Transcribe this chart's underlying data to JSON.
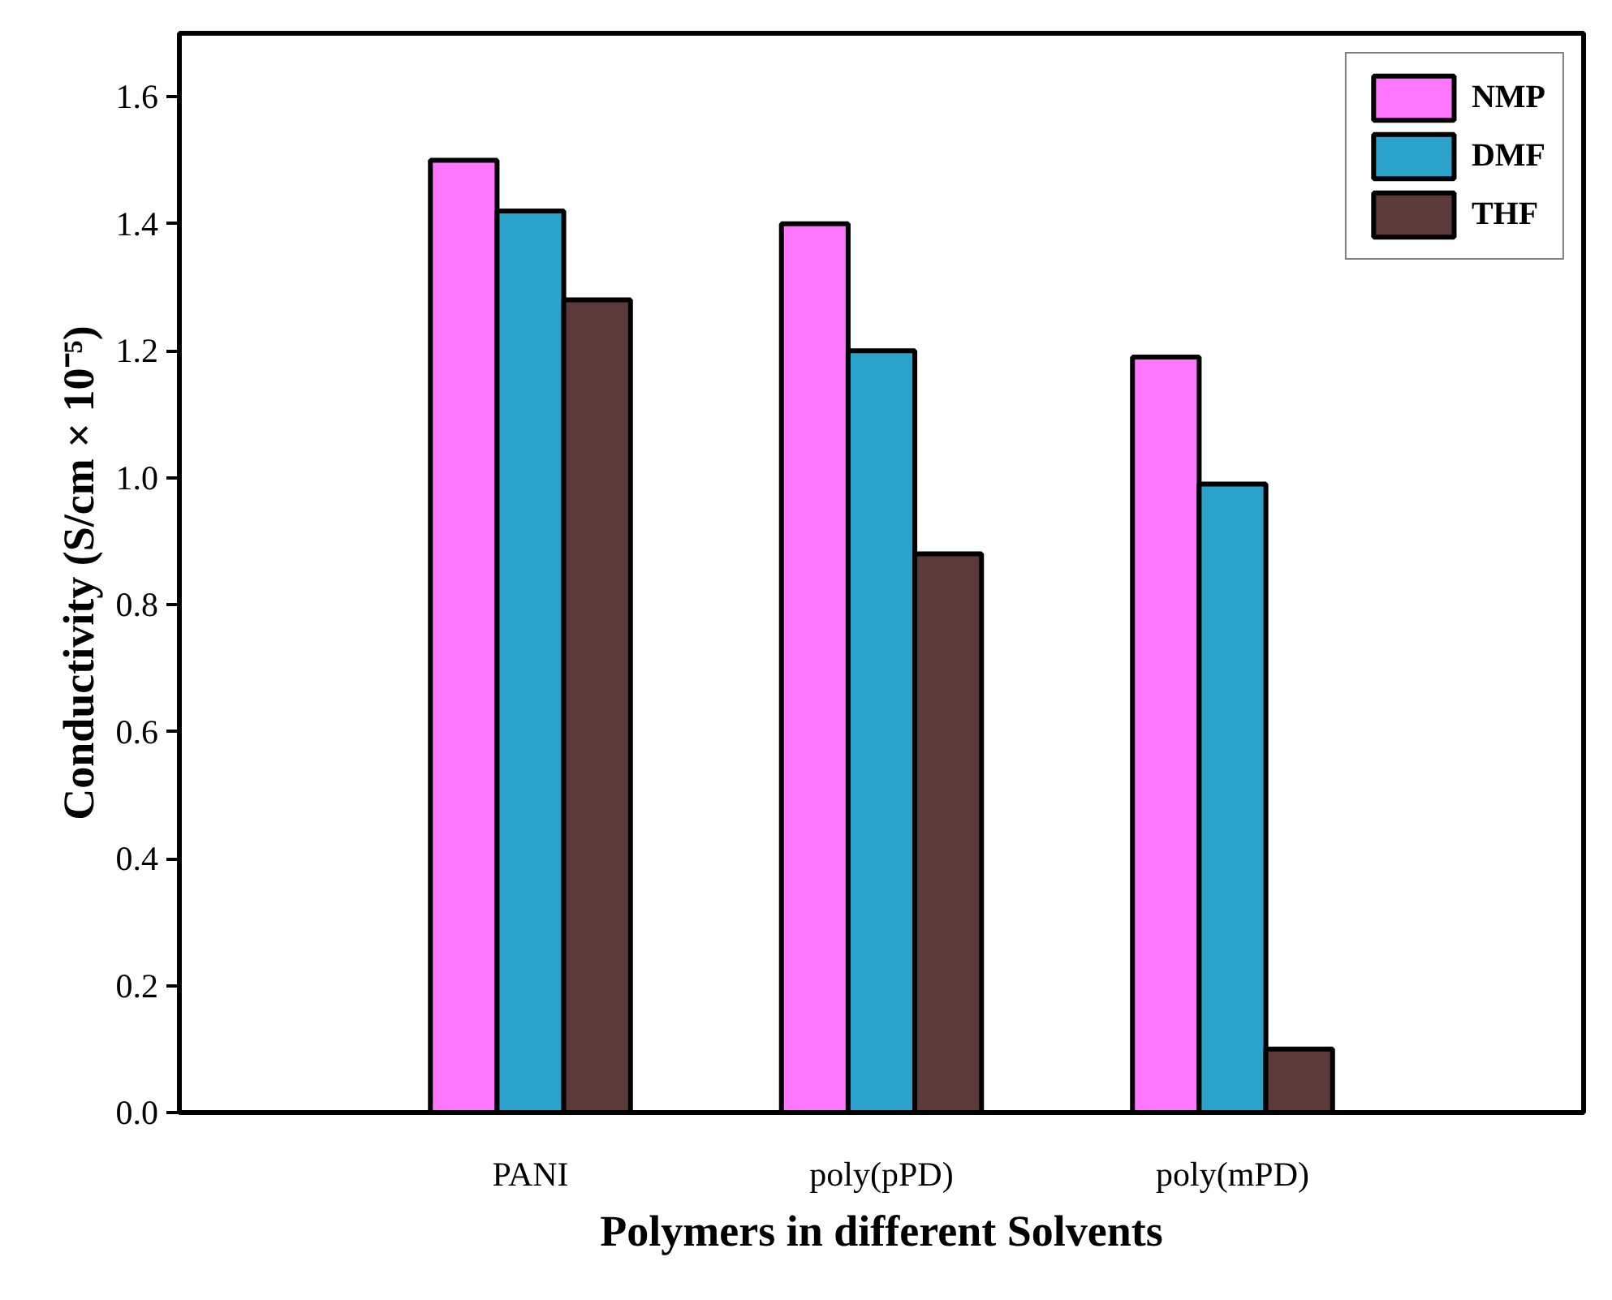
{
  "chart_data": {
    "type": "bar",
    "xlabel": "Polymers in different Solvents",
    "ylabel": "Conductivity (S/cm × 10⁻⁵)",
    "categories": [
      "PANI",
      "poly(pPD)",
      "poly(mPD)"
    ],
    "series": [
      {
        "name": "NMP",
        "color": "#ff77ff",
        "values": [
          1.5,
          1.4,
          1.19
        ]
      },
      {
        "name": "DMF",
        "color": "#2aa2cc",
        "values": [
          1.42,
          1.2,
          0.99
        ]
      },
      {
        "name": "THF",
        "color": "#5c3a3a",
        "values": [
          1.28,
          0.88,
          0.1
        ]
      }
    ],
    "ylim": [
      0,
      1.7
    ],
    "yticks": [
      {
        "value": 0,
        "label": "0.0"
      },
      0.2,
      0.4,
      0.6,
      0.8,
      {
        "value": 1,
        "label": "1.0"
      },
      1.2,
      1.4,
      1.6
    ],
    "grid": false,
    "legend": "top right"
  }
}
